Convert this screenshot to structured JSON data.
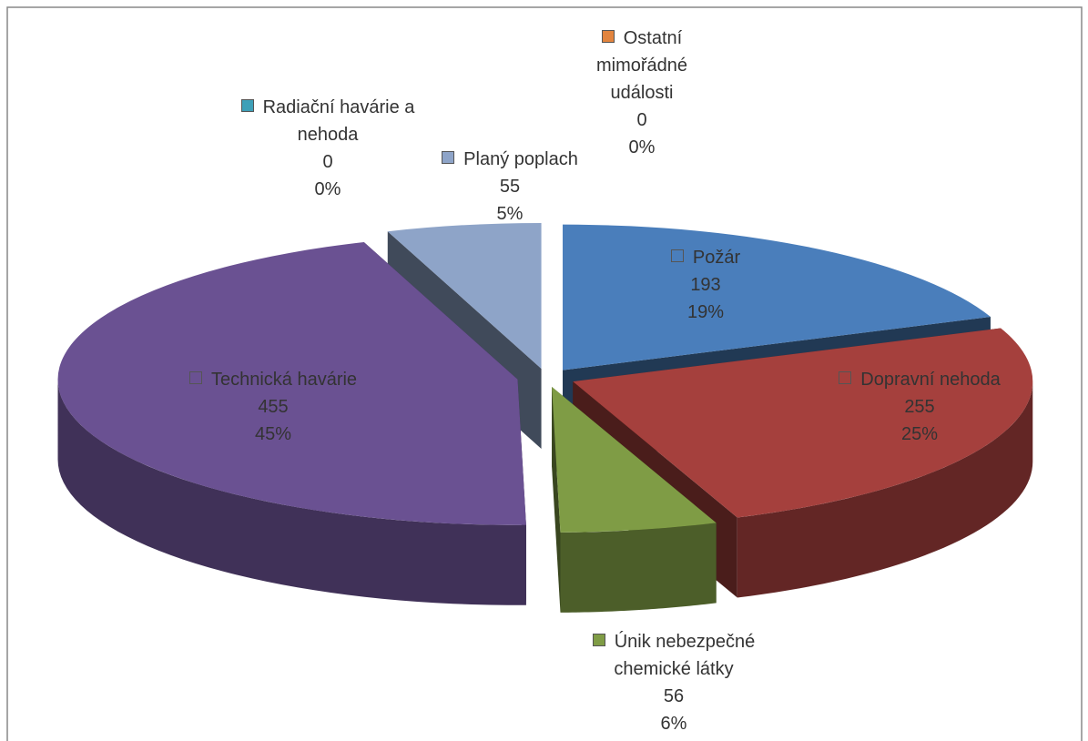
{
  "chart_data": {
    "type": "pie3d",
    "categories": [
      "Požár",
      "Dopravní nehoda",
      "Únik nebezpečné chemické látky",
      "Technická havárie",
      "Radiační havárie a nehoda",
      "Planý poplach",
      "Ostatní mimořádné události"
    ],
    "values": [
      193,
      255,
      56,
      455,
      0,
      55,
      0
    ],
    "percent_labels": [
      "19%",
      "25%",
      "6%",
      "45%",
      "0%",
      "5%",
      "0%"
    ],
    "colors": [
      "#4a7ebb",
      "#a5403d",
      "#7f9c45",
      "#6a5192",
      "#3ea0b8",
      "#8ea4c8",
      "#e2843e"
    ]
  }
}
